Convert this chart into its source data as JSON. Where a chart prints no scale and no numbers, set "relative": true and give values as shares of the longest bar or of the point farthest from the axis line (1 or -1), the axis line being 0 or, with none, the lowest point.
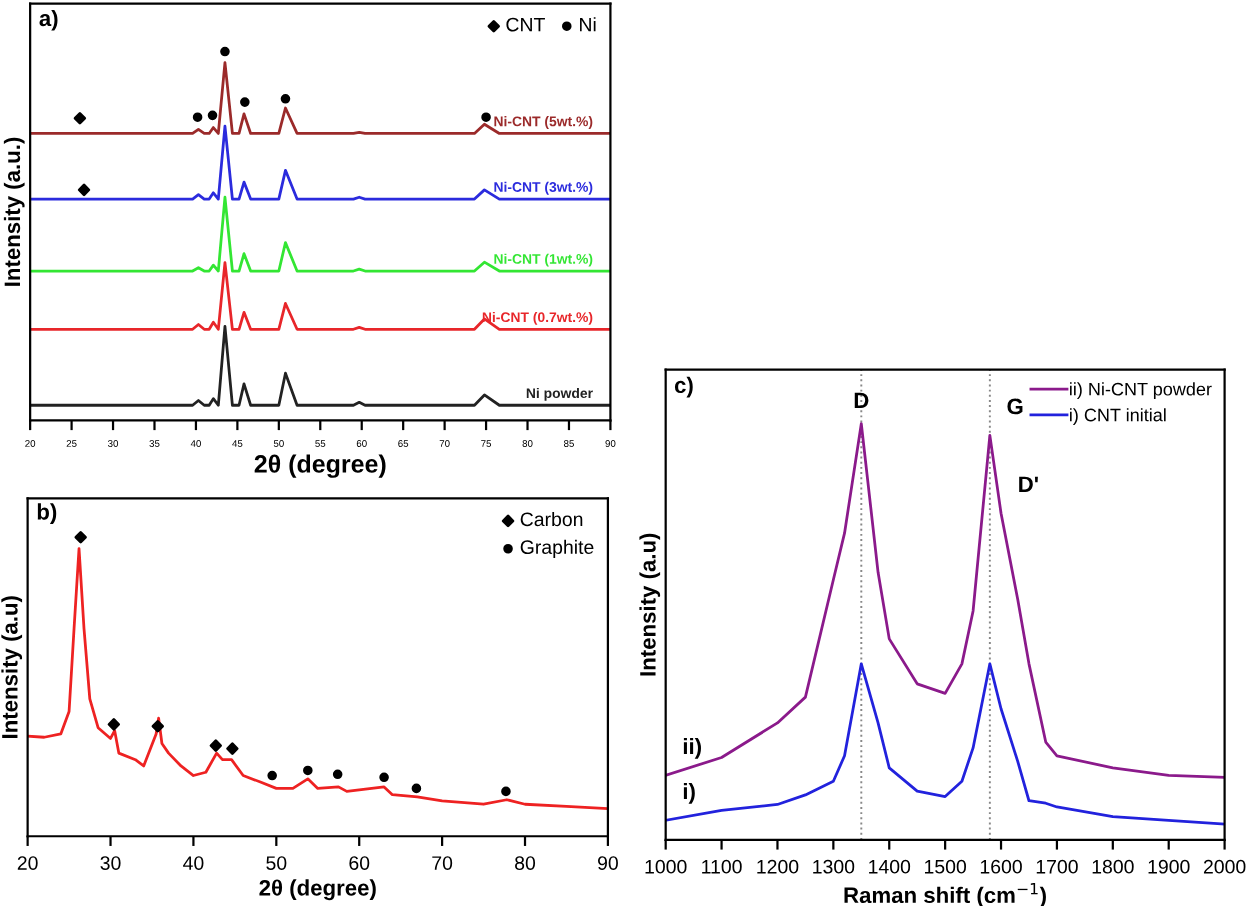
{
  "chart_data": [
    {
      "type": "line",
      "relative": true,
      "xlabel": "2θ (degree)",
      "ylabel": "Intensity (a.u.)",
      "xlim": [
        20,
        90
      ],
      "xticks": [
        20,
        25,
        30,
        35,
        40,
        45,
        50,
        55,
        60,
        65,
        70,
        75,
        80,
        85,
        90
      ],
      "legend": "top right",
      "annotations": [
        "a)"
      ],
      "x": [
        20,
        39.6,
        40.3,
        41.0,
        41.6,
        42.1,
        42.7,
        43.5,
        44.4,
        45.2,
        45.8,
        46.6,
        50.0,
        50.8,
        52.2,
        59.0,
        59.7,
        60.4,
        73.6,
        74.8,
        76.6,
        90
      ],
      "series": [
        {
          "name": "Ni powder",
          "color": "#222222",
          "values": [
            0.041,
            0.041,
            0.054,
            0.041,
            0.041,
            0.059,
            0.041,
            0.255,
            0.041,
            0.041,
            0.099,
            0.041,
            0.041,
            0.128,
            0.041,
            0.041,
            0.049,
            0.041,
            0.041,
            0.069,
            0.041,
            0.041
          ]
        },
        {
          "name": "Ni-CNT (0.7wt.%)",
          "color": "#e8262a",
          "values": [
            0.247,
            0.247,
            0.26,
            0.247,
            0.247,
            0.266,
            0.247,
            0.428,
            0.247,
            0.247,
            0.293,
            0.247,
            0.247,
            0.317,
            0.247,
            0.247,
            0.252,
            0.247,
            0.247,
            0.275,
            0.247,
            0.247
          ]
        },
        {
          "name": "Ni-CNT (1wt.%)",
          "color": "#33e633",
          "values": [
            0.405,
            0.405,
            0.414,
            0.405,
            0.405,
            0.421,
            0.405,
            0.605,
            0.405,
            0.405,
            0.452,
            0.405,
            0.405,
            0.482,
            0.405,
            0.405,
            0.41,
            0.405,
            0.405,
            0.429,
            0.405,
            0.405
          ]
        },
        {
          "name": "Ni-CNT (3wt.%)",
          "color": "#2b2bdd",
          "values": [
            0.6,
            0.6,
            0.612,
            0.6,
            0.6,
            0.617,
            0.6,
            0.798,
            0.6,
            0.6,
            0.646,
            0.6,
            0.6,
            0.678,
            0.6,
            0.6,
            0.605,
            0.6,
            0.6,
            0.625,
            0.6,
            0.6
          ]
        },
        {
          "name": "Ni-CNT (5wt.%)",
          "color": "#9b2a2a",
          "values": [
            0.778,
            0.778,
            0.789,
            0.778,
            0.778,
            0.794,
            0.778,
            0.97,
            0.778,
            0.778,
            0.831,
            0.778,
            0.778,
            0.847,
            0.778,
            0.778,
            0.781,
            0.778,
            0.778,
            0.803,
            0.778,
            0.778
          ]
        },
        {
          "name": "CNT",
          "type": "scatter",
          "marker": "diamond",
          "color": "#000000",
          "x": [
            26.0,
            26.5
          ],
          "values": [
            0.819,
            0.625
          ]
        },
        {
          "name": "Ni",
          "type": "scatter",
          "marker": "circle",
          "color": "#000000",
          "x": [
            40.2,
            42.0,
            43.5,
            45.9,
            50.8,
            75.0
          ],
          "values": [
            0.822,
            0.827,
            1.0,
            0.863,
            0.872,
            0.822
          ]
        }
      ]
    },
    {
      "type": "line",
      "relative": true,
      "xlabel": "2θ (degree)",
      "ylabel": "Intensity (a.u)",
      "xlim": [
        20,
        90
      ],
      "xticks": [
        20,
        30,
        40,
        50,
        60,
        70,
        80,
        90
      ],
      "legend": "top right",
      "annotations": [
        "b)"
      ],
      "series": [
        {
          "color": "#ee2222",
          "x": [
            20,
            22,
            24,
            25,
            25.6,
            26.2,
            26.8,
            27.5,
            28.5,
            30,
            30.5,
            31,
            33,
            34,
            35.5,
            35.8,
            36.2,
            37,
            38.5,
            40,
            41.5,
            42.8,
            43.5,
            44.6,
            46,
            48,
            50,
            52,
            53.8,
            55,
            57.5,
            58.5,
            63,
            64,
            67,
            70,
            75,
            77.8,
            80,
            85,
            90
          ],
          "values": [
            0.335,
            0.331,
            0.342,
            0.417,
            0.694,
            0.962,
            0.694,
            0.459,
            0.363,
            0.327,
            0.353,
            0.278,
            0.256,
            0.235,
            0.342,
            0.395,
            0.31,
            0.278,
            0.235,
            0.203,
            0.214,
            0.278,
            0.256,
            0.256,
            0.203,
            0.182,
            0.16,
            0.16,
            0.192,
            0.16,
            0.165,
            0.15,
            0.165,
            0.139,
            0.132,
            0.118,
            0.107,
            0.122,
            0.107,
            0.1,
            0.092
          ]
        },
        {
          "name": "Carbon",
          "type": "scatter",
          "marker": "diamond",
          "color": "#000000",
          "x": [
            26.4,
            30.4,
            35.7,
            42.7,
            44.7
          ],
          "values": [
            1.0,
            0.374,
            0.368,
            0.303,
            0.293
          ]
        },
        {
          "name": "Graphite",
          "type": "scatter",
          "marker": "circle",
          "color": "#000000",
          "x": [
            49.5,
            53.8,
            57.4,
            63.0,
            66.9,
            77.7
          ],
          "values": [
            0.203,
            0.22,
            0.207,
            0.197,
            0.16,
            0.15
          ]
        }
      ]
    },
    {
      "type": "line",
      "relative": true,
      "xlabel": "Raman shift (cm$^{−1}$)",
      "ylabel": "Intensity (a.u)",
      "xlim": [
        1000,
        2000
      ],
      "xticks": [
        1000,
        1100,
        1200,
        1300,
        1400,
        1500,
        1600,
        1700,
        1800,
        1900,
        2000
      ],
      "legend": "top right",
      "ref_lines": [
        {
          "axis": "x",
          "value": 1350,
          "color": "#888888",
          "line_style": "dotted"
        },
        {
          "axis": "x",
          "value": 1580,
          "color": "#888888",
          "line_style": "dotted"
        }
      ],
      "annotations": [
        "c)",
        {
          "text": "D",
          "x": 1350,
          "y": 1.0
        },
        {
          "text": "G",
          "x": 1580,
          "y": 0.972
        },
        {
          "text": "D'",
          "x": 1600,
          "y": 0.785
        },
        {
          "text": "ii)",
          "x": 1000,
          "y": 0.155
        },
        {
          "text": "i)",
          "x": 1000,
          "y": 0.047
        }
      ],
      "x": [
        1000,
        1100,
        1200,
        1250,
        1300,
        1320,
        1350,
        1380,
        1400,
        1450,
        1500,
        1530,
        1550,
        1580,
        1600,
        1630,
        1650,
        1680,
        1700,
        1800,
        1900,
        2000
      ],
      "series": [
        {
          "name": "ii) Ni-CNT powder",
          "color": "#8b1a8b",
          "values": [
            0.155,
            0.198,
            0.281,
            0.343,
            0.625,
            0.737,
            1.0,
            0.643,
            0.483,
            0.375,
            0.352,
            0.423,
            0.55,
            0.972,
            0.785,
            0.577,
            0.423,
            0.235,
            0.202,
            0.173,
            0.155,
            0.15
          ]
        },
        {
          "name": "i) CNT initial",
          "color": "#2222dd",
          "values": [
            0.047,
            0.071,
            0.085,
            0.108,
            0.141,
            0.202,
            0.423,
            0.281,
            0.173,
            0.117,
            0.104,
            0.141,
            0.221,
            0.423,
            0.315,
            0.188,
            0.094,
            0.088,
            0.079,
            0.056,
            0.047,
            0.038
          ]
        }
      ]
    }
  ]
}
